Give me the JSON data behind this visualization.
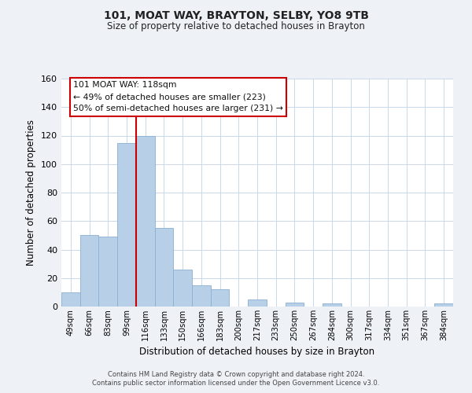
{
  "title": "101, MOAT WAY, BRAYTON, SELBY, YO8 9TB",
  "subtitle": "Size of property relative to detached houses in Brayton",
  "xlabel": "Distribution of detached houses by size in Brayton",
  "ylabel": "Number of detached properties",
  "bar_labels": [
    "49sqm",
    "66sqm",
    "83sqm",
    "99sqm",
    "116sqm",
    "133sqm",
    "150sqm",
    "166sqm",
    "183sqm",
    "200sqm",
    "217sqm",
    "233sqm",
    "250sqm",
    "267sqm",
    "284sqm",
    "300sqm",
    "317sqm",
    "334sqm",
    "351sqm",
    "367sqm",
    "384sqm"
  ],
  "bar_values": [
    10,
    50,
    49,
    115,
    120,
    55,
    26,
    15,
    12,
    0,
    5,
    0,
    3,
    0,
    2,
    0,
    0,
    0,
    0,
    0,
    2
  ],
  "bar_color": "#b8cfe8",
  "bar_edge_color": "#8ab0d0",
  "vline_x_index": 4,
  "vline_color": "#cc0000",
  "ylim": [
    0,
    160
  ],
  "yticks": [
    0,
    20,
    40,
    60,
    80,
    100,
    120,
    140,
    160
  ],
  "annotation_title": "101 MOAT WAY: 118sqm",
  "annotation_line1": "← 49% of detached houses are smaller (223)",
  "annotation_line2": "50% of semi-detached houses are larger (231) →",
  "footer1": "Contains HM Land Registry data © Crown copyright and database right 2024.",
  "footer2": "Contains public sector information licensed under the Open Government Licence v3.0.",
  "background_color": "#eef2f7",
  "plot_background_color": "#ffffff",
  "grid_color": "#c8d8ea"
}
